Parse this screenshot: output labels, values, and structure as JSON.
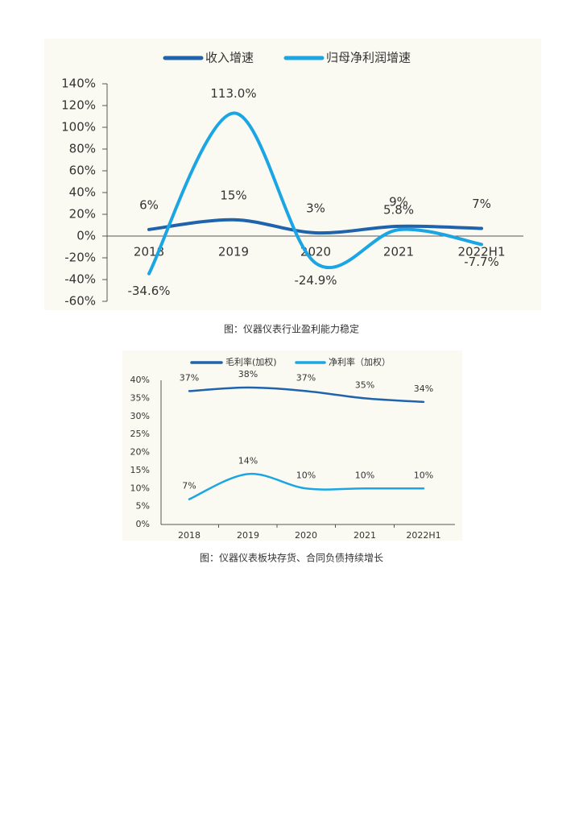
{
  "chart_data": [
    {
      "type": "line",
      "categories": [
        "2018",
        "2019",
        "2020",
        "2021",
        "2022H1"
      ],
      "series": [
        {
          "name": "收入增速",
          "color": "#1f63ad",
          "values": [
            6,
            15,
            3,
            9,
            7
          ],
          "value_labels": [
            "6%",
            "15%",
            "3%",
            "9%",
            "7%"
          ]
        },
        {
          "name": "归母净利润增速",
          "color": "#1ba6e3",
          "values": [
            -34.6,
            113.0,
            -24.9,
            5.8,
            -7.7
          ],
          "value_labels": [
            "-34.6%",
            "113.0%",
            "-24.9%",
            "5.8%",
            "-7.7%"
          ]
        }
      ],
      "ylim": [
        -60,
        140
      ],
      "yticks": [
        {
          "value": -60,
          "label": "-60%"
        },
        {
          "value": -40,
          "label": "-40%"
        },
        {
          "value": -20,
          "label": "-20%"
        },
        {
          "value": 0,
          "label": "0%"
        },
        {
          "value": 20,
          "label": "20%"
        },
        {
          "value": 40,
          "label": "40%"
        },
        {
          "value": 60,
          "label": "60%"
        },
        {
          "value": 80,
          "label": "80%"
        },
        {
          "value": 100,
          "label": "100%"
        },
        {
          "value": 120,
          "label": "120%"
        },
        {
          "value": 140,
          "label": "140%"
        }
      ],
      "grid": false
    },
    {
      "type": "line",
      "categories": [
        "2018",
        "2019",
        "2020",
        "2021",
        "2022H1"
      ],
      "series": [
        {
          "name": "毛利率(加权)",
          "color": "#1f63ad",
          "values": [
            37,
            38,
            37,
            35,
            34
          ],
          "value_labels": [
            "37%",
            "38%",
            "37%",
            "35%",
            "34%"
          ]
        },
        {
          "name": "净利率（加权）",
          "color": "#1ba6e3",
          "values": [
            7,
            14,
            10,
            10,
            10
          ],
          "value_labels": [
            "7%",
            "14%",
            "10%",
            "10%",
            "10%"
          ]
        }
      ],
      "ylim": [
        0,
        40
      ],
      "yticks": [
        {
          "value": 0,
          "label": "0%"
        },
        {
          "value": 5,
          "label": "5%"
        },
        {
          "value": 10,
          "label": "10%"
        },
        {
          "value": 15,
          "label": "15%"
        },
        {
          "value": 20,
          "label": "20%"
        },
        {
          "value": 25,
          "label": "25%"
        },
        {
          "value": 30,
          "label": "30%"
        },
        {
          "value": 35,
          "label": "35%"
        },
        {
          "value": 40,
          "label": "40%"
        }
      ],
      "grid": false
    }
  ],
  "captions": [
    "图：仪器仪表行业盈利能力稳定",
    "图：仪器仪表板块存货、合同负债持续增长"
  ]
}
